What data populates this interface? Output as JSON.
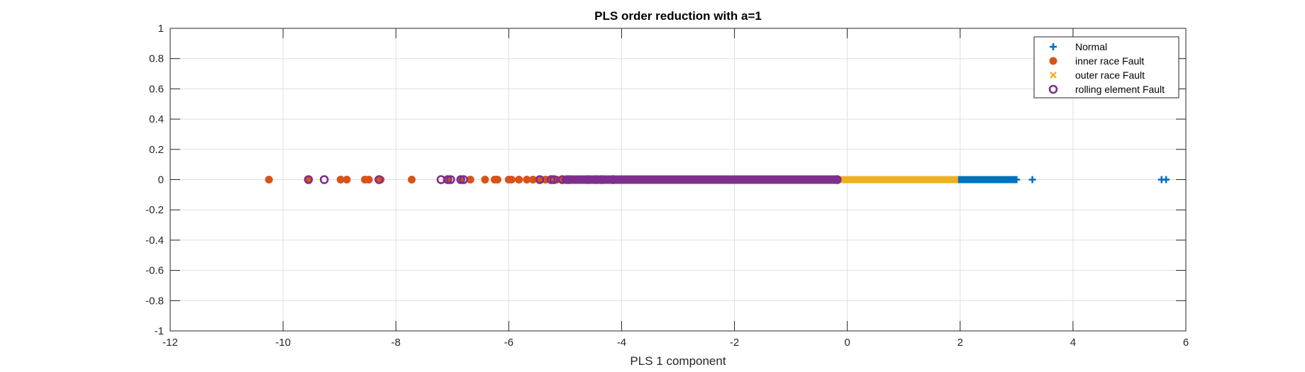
{
  "chart_data": {
    "type": "scatter",
    "title": "PLS order reduction with a=1",
    "xlabel": "PLS 1 component",
    "ylabel": "",
    "xlim": [
      -12,
      6
    ],
    "ylim": [
      -1,
      1
    ],
    "xticks": [
      -12,
      -10,
      -8,
      -6,
      -4,
      -2,
      0,
      2,
      4,
      6
    ],
    "yticks": [
      -1,
      -0.8,
      -0.6,
      -0.4,
      -0.2,
      0,
      0.2,
      0.4,
      0.6,
      0.8,
      1
    ],
    "grid": true,
    "legend_position": "top-right",
    "series": [
      {
        "name": "Normal",
        "marker": "plus",
        "color": "#0072BD",
        "dense_ranges": [
          [
            1.85,
            2.95
          ]
        ],
        "x": [
          0.75,
          0.8,
          1.25,
          1.7,
          1.78,
          1.85,
          1.9,
          2.0,
          2.1,
          2.2,
          2.3,
          2.4,
          2.5,
          2.6,
          2.7,
          2.8,
          2.9,
          2.95,
          3.0,
          3.28,
          5.57,
          5.65
        ],
        "y": [
          0,
          0,
          0,
          0,
          0,
          0,
          0,
          0,
          0,
          0,
          0,
          0,
          0,
          0,
          0,
          0,
          0,
          0,
          0,
          0,
          0,
          0
        ]
      },
      {
        "name": "inner race Fault",
        "marker": "circle-filled",
        "color": "#D95319",
        "dense_ranges": [
          [
            -4.2,
            -2.2
          ]
        ],
        "x": [
          -10.25,
          -9.55,
          -8.98,
          -8.87,
          -8.55,
          -8.48,
          -8.3,
          -8.27,
          -7.72,
          -7.1,
          -6.85,
          -6.68,
          -6.42,
          -6.25,
          -6.2,
          -6.0,
          -5.95,
          -5.82,
          -5.68,
          -5.57,
          -5.45,
          -5.35,
          -5.25,
          -5.15,
          -5.05,
          -4.95,
          -4.85,
          -4.75,
          -4.6,
          -4.48,
          -4.35,
          -4.2,
          -4.1
        ],
        "y": [
          0,
          0,
          0,
          0,
          0,
          0,
          0,
          0,
          0,
          0,
          0,
          0,
          0,
          0,
          0,
          0,
          0,
          0,
          0,
          0,
          0,
          0,
          0,
          0,
          0,
          0,
          0,
          0,
          0,
          0,
          0,
          0,
          0
        ]
      },
      {
        "name": "outer race Fault",
        "marker": "x",
        "color": "#EDB120",
        "dense_ranges": [
          [
            -0.3,
            1.9
          ]
        ],
        "x": [
          -0.3,
          0.2,
          0.5,
          0.8,
          0.9,
          1.0,
          1.1,
          1.2,
          1.3,
          1.4,
          1.5,
          1.6,
          1.7,
          1.75,
          1.8,
          1.9
        ],
        "y": [
          0,
          0,
          0,
          0,
          0,
          0,
          0,
          0,
          0,
          0,
          0,
          0,
          0,
          0,
          0,
          0
        ]
      },
      {
        "name": "rolling element Fault",
        "marker": "circle-open",
        "color": "#7E2F8E",
        "dense_ranges": [
          [
            -5.0,
            -0.18
          ]
        ],
        "x": [
          -9.55,
          -9.27,
          -8.3,
          -7.2,
          -7.08,
          -7.03,
          -6.85,
          -6.8,
          -5.45,
          -5.25,
          -5.2,
          -5.05,
          -4.95,
          -4.6,
          -4.45,
          -4.35,
          -4.15,
          -0.18
        ],
        "y": [
          0,
          0,
          0,
          0,
          0,
          0,
          0,
          0,
          0,
          0,
          0,
          0,
          0,
          0,
          0,
          0,
          0,
          0
        ]
      }
    ]
  }
}
